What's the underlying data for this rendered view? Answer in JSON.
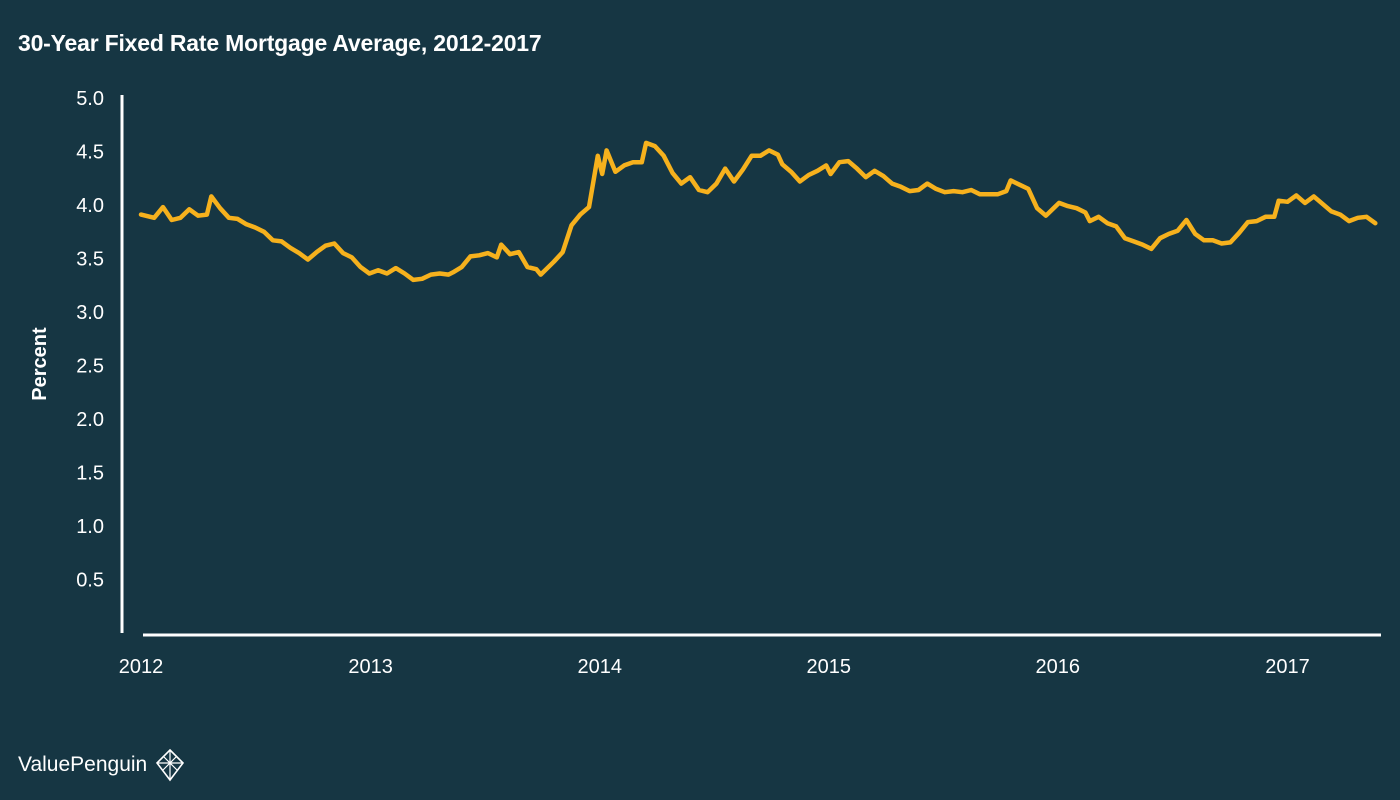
{
  "colors": {
    "background": "#163643",
    "line": "#F6B11D",
    "axis": "#FFFFFF",
    "text": "#FFFFFF"
  },
  "brand": {
    "name": "ValuePenguin",
    "icon": "penguin-diamond-logo-icon"
  },
  "chart_data": {
    "type": "line",
    "title": "30-Year Fixed Rate Mortgage Average, 2012-2017",
    "xlabel": "",
    "ylabel": "Percent",
    "xlim": [
      "2012-01-05",
      "2017-05-25"
    ],
    "ylim": [
      0,
      5.0
    ],
    "yticks": [
      0.5,
      1.0,
      1.5,
      2.0,
      2.5,
      3.0,
      3.5,
      4.0,
      4.5,
      5.0
    ],
    "ytick_labels": [
      "0.5",
      "1.0",
      "1.5",
      "2.0",
      "2.5",
      "3.0",
      "3.5",
      "4.0",
      "4.5",
      "5.0"
    ],
    "xticks": [
      "2012-01-05",
      "2013-01-05",
      "2014-01-05",
      "2015-01-05",
      "2016-01-05",
      "2017-01-05"
    ],
    "xtick_labels": [
      "2012",
      "2013",
      "2014",
      "2015",
      "2016",
      "2017"
    ],
    "grid": false,
    "legend": "none",
    "series": [
      {
        "color": "#F6B11D",
        "points": [
          [
            "2012-01-05",
            3.91
          ],
          [
            "2012-01-26",
            3.88
          ],
          [
            "2012-02-09",
            3.98
          ],
          [
            "2012-02-23",
            3.86
          ],
          [
            "2012-03-08",
            3.88
          ],
          [
            "2012-03-22",
            3.96
          ],
          [
            "2012-04-05",
            3.9
          ],
          [
            "2012-04-19",
            3.91
          ],
          [
            "2012-04-26",
            4.08
          ],
          [
            "2012-05-10",
            3.97
          ],
          [
            "2012-05-24",
            3.88
          ],
          [
            "2012-06-07",
            3.87
          ],
          [
            "2012-06-21",
            3.82
          ],
          [
            "2012-07-05",
            3.79
          ],
          [
            "2012-07-19",
            3.75
          ],
          [
            "2012-08-02",
            3.67
          ],
          [
            "2012-08-16",
            3.66
          ],
          [
            "2012-08-30",
            3.6
          ],
          [
            "2012-09-13",
            3.55
          ],
          [
            "2012-09-27",
            3.49
          ],
          [
            "2012-10-11",
            3.56
          ],
          [
            "2012-10-25",
            3.62
          ],
          [
            "2012-11-08",
            3.64
          ],
          [
            "2012-11-22",
            3.55
          ],
          [
            "2012-12-06",
            3.51
          ],
          [
            "2012-12-20",
            3.42
          ],
          [
            "2013-01-03",
            3.36
          ],
          [
            "2013-01-17",
            3.39
          ],
          [
            "2013-01-31",
            3.36
          ],
          [
            "2013-02-14",
            3.41
          ],
          [
            "2013-02-28",
            3.36
          ],
          [
            "2013-03-14",
            3.3
          ],
          [
            "2013-03-28",
            3.31
          ],
          [
            "2013-04-11",
            3.35
          ],
          [
            "2013-04-25",
            3.36
          ],
          [
            "2013-05-09",
            3.35
          ],
          [
            "2013-05-16",
            3.37
          ],
          [
            "2013-05-30",
            3.42
          ],
          [
            "2013-06-13",
            3.52
          ],
          [
            "2013-06-27",
            3.53
          ],
          [
            "2013-07-11",
            3.55
          ],
          [
            "2013-07-25",
            3.51
          ],
          [
            "2013-08-01",
            3.63
          ],
          [
            "2013-08-15",
            3.54
          ],
          [
            "2013-08-29",
            3.56
          ],
          [
            "2013-09-12",
            3.42
          ],
          [
            "2013-09-26",
            3.4
          ],
          [
            "2013-10-03",
            3.35
          ],
          [
            "2013-10-24",
            3.47
          ],
          [
            "2013-11-07",
            3.56
          ],
          [
            "2013-11-21",
            3.81
          ],
          [
            "2013-12-05",
            3.91
          ],
          [
            "2013-12-19",
            3.98
          ],
          [
            "2014-01-02",
            4.46
          ],
          [
            "2014-01-09",
            4.29
          ],
          [
            "2014-01-16",
            4.51
          ],
          [
            "2014-01-30",
            4.31
          ],
          [
            "2014-02-13",
            4.37
          ],
          [
            "2014-02-27",
            4.4
          ],
          [
            "2014-03-13",
            4.4
          ],
          [
            "2014-03-20",
            4.58
          ],
          [
            "2014-04-03",
            4.55
          ],
          [
            "2014-04-17",
            4.46
          ],
          [
            "2014-05-01",
            4.3
          ],
          [
            "2014-05-15",
            4.2
          ],
          [
            "2014-05-29",
            4.26
          ],
          [
            "2014-06-12",
            4.14
          ],
          [
            "2014-06-26",
            4.12
          ],
          [
            "2014-07-10",
            4.2
          ],
          [
            "2014-07-24",
            4.34
          ],
          [
            "2014-08-07",
            4.22
          ],
          [
            "2014-08-21",
            4.33
          ],
          [
            "2014-09-04",
            4.46
          ],
          [
            "2014-09-18",
            4.46
          ],
          [
            "2014-10-02",
            4.51
          ],
          [
            "2014-10-16",
            4.47
          ],
          [
            "2014-10-23",
            4.38
          ],
          [
            "2014-11-06",
            4.31
          ],
          [
            "2014-11-20",
            4.22
          ],
          [
            "2014-12-04",
            4.28
          ],
          [
            "2014-12-18",
            4.32
          ],
          [
            "2015-01-01",
            4.37
          ],
          [
            "2015-01-08",
            4.29
          ],
          [
            "2015-01-22",
            4.4
          ],
          [
            "2015-02-05",
            4.41
          ],
          [
            "2015-02-19",
            4.34
          ],
          [
            "2015-03-05",
            4.26
          ],
          [
            "2015-03-19",
            4.32
          ],
          [
            "2015-04-02",
            4.27
          ],
          [
            "2015-04-16",
            4.2
          ],
          [
            "2015-04-30",
            4.17
          ],
          [
            "2015-05-14",
            4.13
          ],
          [
            "2015-05-28",
            4.14
          ],
          [
            "2015-06-11",
            4.2
          ],
          [
            "2015-06-25",
            4.15
          ],
          [
            "2015-07-09",
            4.12
          ],
          [
            "2015-07-23",
            4.13
          ],
          [
            "2015-08-06",
            4.12
          ],
          [
            "2015-08-20",
            4.14
          ],
          [
            "2015-09-03",
            4.1
          ],
          [
            "2015-09-17",
            4.1
          ],
          [
            "2015-10-01",
            4.1
          ],
          [
            "2015-10-15",
            4.13
          ],
          [
            "2015-10-22",
            4.23
          ],
          [
            "2015-11-05",
            4.19
          ],
          [
            "2015-11-19",
            4.15
          ],
          [
            "2015-12-03",
            3.97
          ],
          [
            "2015-12-17",
            3.9
          ],
          [
            "2015-12-31",
            3.98
          ],
          [
            "2016-01-07",
            4.02
          ],
          [
            "2016-01-21",
            3.99
          ],
          [
            "2016-02-04",
            3.97
          ],
          [
            "2016-02-18",
            3.93
          ],
          [
            "2016-02-25",
            3.85
          ],
          [
            "2016-03-10",
            3.89
          ],
          [
            "2016-03-24",
            3.83
          ],
          [
            "2016-04-07",
            3.8
          ],
          [
            "2016-04-21",
            3.69
          ],
          [
            "2016-05-05",
            3.66
          ],
          [
            "2016-05-19",
            3.63
          ],
          [
            "2016-06-02",
            3.59
          ],
          [
            "2016-06-16",
            3.69
          ],
          [
            "2016-06-30",
            3.73
          ],
          [
            "2016-07-14",
            3.76
          ],
          [
            "2016-07-28",
            3.86
          ],
          [
            "2016-08-11",
            3.73
          ],
          [
            "2016-08-25",
            3.67
          ],
          [
            "2016-09-08",
            3.67
          ],
          [
            "2016-09-22",
            3.64
          ],
          [
            "2016-10-06",
            3.65
          ],
          [
            "2016-10-20",
            3.74
          ],
          [
            "2016-11-03",
            3.84
          ],
          [
            "2016-11-17",
            3.85
          ],
          [
            "2016-12-01",
            3.89
          ],
          [
            "2016-12-15",
            3.89
          ],
          [
            "2016-12-22",
            4.04
          ],
          [
            "2017-01-05",
            4.03
          ],
          [
            "2017-01-19",
            4.09
          ],
          [
            "2017-02-02",
            4.02
          ],
          [
            "2017-02-16",
            4.08
          ],
          [
            "2017-03-02",
            4.01
          ],
          [
            "2017-03-16",
            3.94
          ],
          [
            "2017-03-30",
            3.91
          ],
          [
            "2017-04-13",
            3.85
          ],
          [
            "2017-04-27",
            3.88
          ],
          [
            "2017-05-11",
            3.89
          ],
          [
            "2017-05-25",
            3.83
          ]
        ]
      }
    ]
  }
}
